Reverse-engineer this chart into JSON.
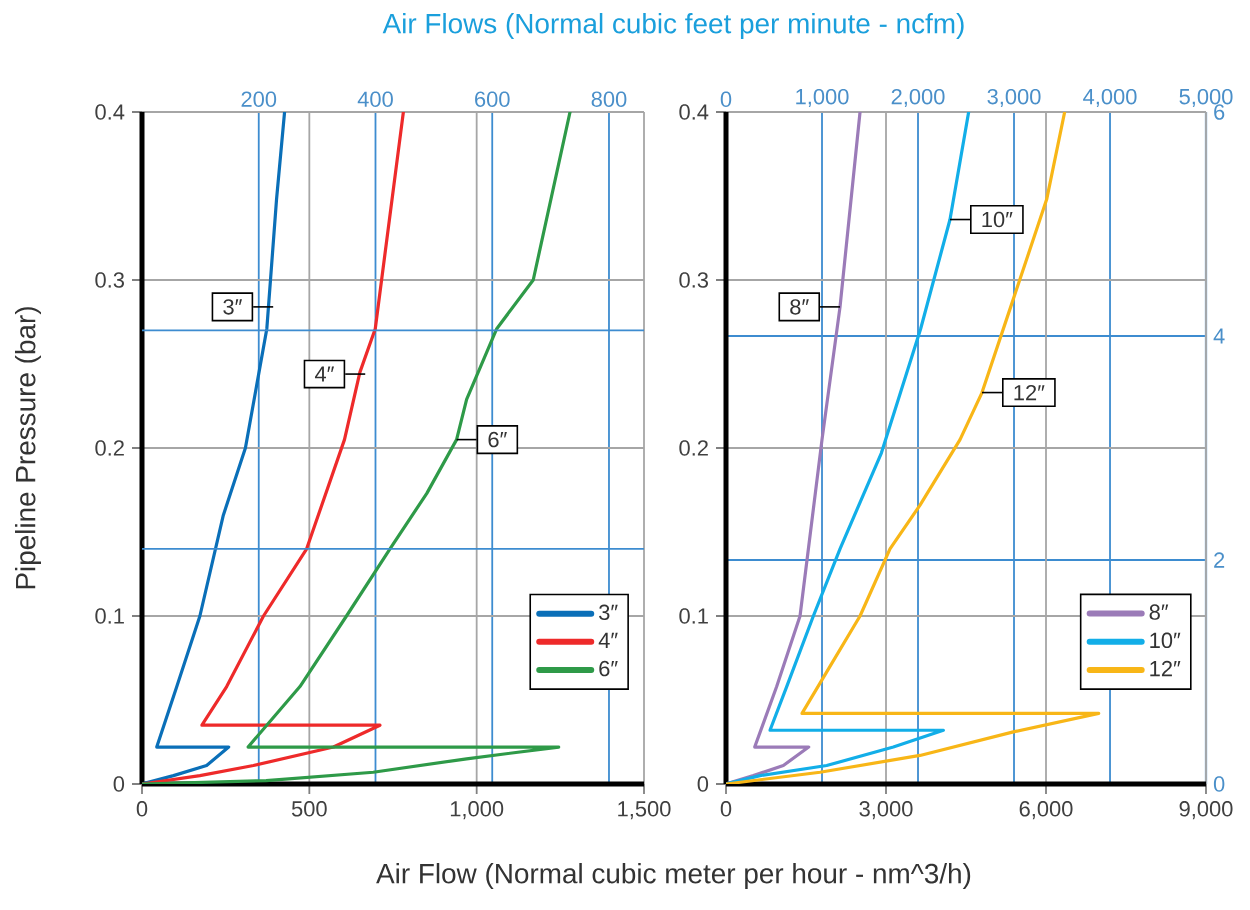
{
  "chart_data": [
    {
      "type": "line",
      "ylabel": "Pipeline Pressure (bar)",
      "xlabel": "Air Flow (Normal cubic meter per hour - nm^3/h)",
      "x2label": "Air Flows (Normal cubic feet per minute - ncfm)",
      "xlim": [
        0,
        1500
      ],
      "xticks": [
        0,
        500,
        {
          "value": 1000,
          "label": "1,000"
        },
        {
          "value": 1500,
          "label": "1,500"
        }
      ],
      "ylim": [
        0,
        0.4
      ],
      "yticks": [
        0,
        0.1,
        0.2,
        0.3,
        0.4
      ],
      "x2lim": [
        0,
        860
      ],
      "x2ticks": [
        200,
        400,
        600,
        800
      ],
      "ref_lines": [
        {
          "axis": "y",
          "value": 0.14,
          "color": "#3d8cd0"
        },
        {
          "axis": "y",
          "value": 0.27,
          "color": "#3d8cd0"
        }
      ],
      "grid": true,
      "legend": "bottom right",
      "marker": "none",
      "line_style": "solid",
      "series": [
        {
          "name": "3″",
          "color": "#0a6fb8",
          "x": [
            0,
            94,
            193,
            259,
            44,
            104,
            173,
            243,
            309,
            373,
            402,
            426
          ],
          "values": [
            0,
            0.005,
            0.011,
            0.022,
            0.022,
            0.058,
            0.1,
            0.16,
            0.2,
            0.271,
            0.348,
            0.4
          ]
        },
        {
          "name": "4″",
          "color": "#ee2a2a",
          "x": [
            0,
            173,
            333,
            572,
            711,
            179,
            253,
            363,
            492,
            605,
            651,
            697,
            781
          ],
          "values": [
            0,
            0.005,
            0.011,
            0.022,
            0.035,
            0.035,
            0.058,
            0.1,
            0.14,
            0.205,
            0.245,
            0.271,
            0.4
          ]
        },
        {
          "name": "6″",
          "color": "#2e9a48",
          "x": [
            0,
            371,
            691,
            970,
            1245,
            317,
            472,
            611,
            741,
            851,
            940,
            970,
            1060,
            1169,
            1279
          ],
          "values": [
            0,
            0.002,
            0.007,
            0.015,
            0.022,
            0.022,
            0.058,
            0.1,
            0.14,
            0.173,
            0.205,
            0.229,
            0.271,
            0.3,
            0.4
          ]
        }
      ],
      "annotations": [
        {
          "text": "3″",
          "x": 392,
          "y": 0.284
        },
        {
          "text": "4″",
          "x": 667,
          "y": 0.244
        },
        {
          "text": "6″",
          "x": 940,
          "y": 0.205
        }
      ]
    },
    {
      "type": "line",
      "xlim": [
        0,
        9000
      ],
      "xticks": [
        0,
        {
          "value": 3000,
          "label": "3,000"
        },
        {
          "value": 6000,
          "label": "6,000"
        },
        {
          "value": 9000,
          "label": "9,000"
        }
      ],
      "ylim": [
        0,
        0.4
      ],
      "yticks": [
        0,
        0.1,
        0.2,
        0.3,
        0.4
      ],
      "x2lim": [
        0,
        5000
      ],
      "x2ticks": [
        0,
        {
          "value": 1000,
          "label": "1,000"
        },
        {
          "value": 2000,
          "label": "2,000"
        },
        {
          "value": 3000,
          "label": "3,000"
        },
        {
          "value": 4000,
          "label": "4,000"
        },
        {
          "value": 5000,
          "label": "5,000"
        }
      ],
      "y2lim": [
        0,
        6
      ],
      "y2ticks": [
        0,
        2,
        4,
        6
      ],
      "grid": true,
      "legend": "bottom right",
      "marker": "none",
      "line_style": "solid",
      "series": [
        {
          "name": "8″",
          "color": "#9b7bb8",
          "x": [
            0,
            513,
            1075,
            1550,
            538,
            950,
            1388,
            1800,
            2138,
            2513
          ],
          "values": [
            0,
            0.005,
            0.011,
            0.022,
            0.022,
            0.058,
            0.1,
            0.205,
            0.284,
            0.4
          ]
        },
        {
          "name": "10″",
          "color": "#12aee8",
          "x": [
            0,
            638,
            1888,
            3138,
            4075,
            825,
            1138,
            1638,
            2138,
            2913,
            3650,
            4200,
            4550
          ],
          "values": [
            0,
            0.005,
            0.011,
            0.022,
            0.032,
            0.032,
            0.058,
            0.1,
            0.14,
            0.197,
            0.271,
            0.336,
            0.4
          ]
        },
        {
          "name": "12″",
          "color": "#f8b617",
          "x": [
            0,
            1763,
            3638,
            5388,
            6988,
            1425,
            1950,
            2513,
            3075,
            3638,
            4388,
            4800,
            5338,
            6013,
            6350
          ],
          "values": [
            0,
            0.007,
            0.017,
            0.031,
            0.042,
            0.042,
            0.07,
            0.1,
            0.14,
            0.166,
            0.205,
            0.233,
            0.284,
            0.348,
            0.4
          ]
        }
      ],
      "annotations": [
        {
          "text": "8″",
          "x": 2138,
          "y": 0.284
        },
        {
          "text": "10″",
          "x": 4200,
          "y": 0.336
        },
        {
          "text": "12″",
          "x": 4800,
          "y": 0.233
        }
      ]
    }
  ]
}
